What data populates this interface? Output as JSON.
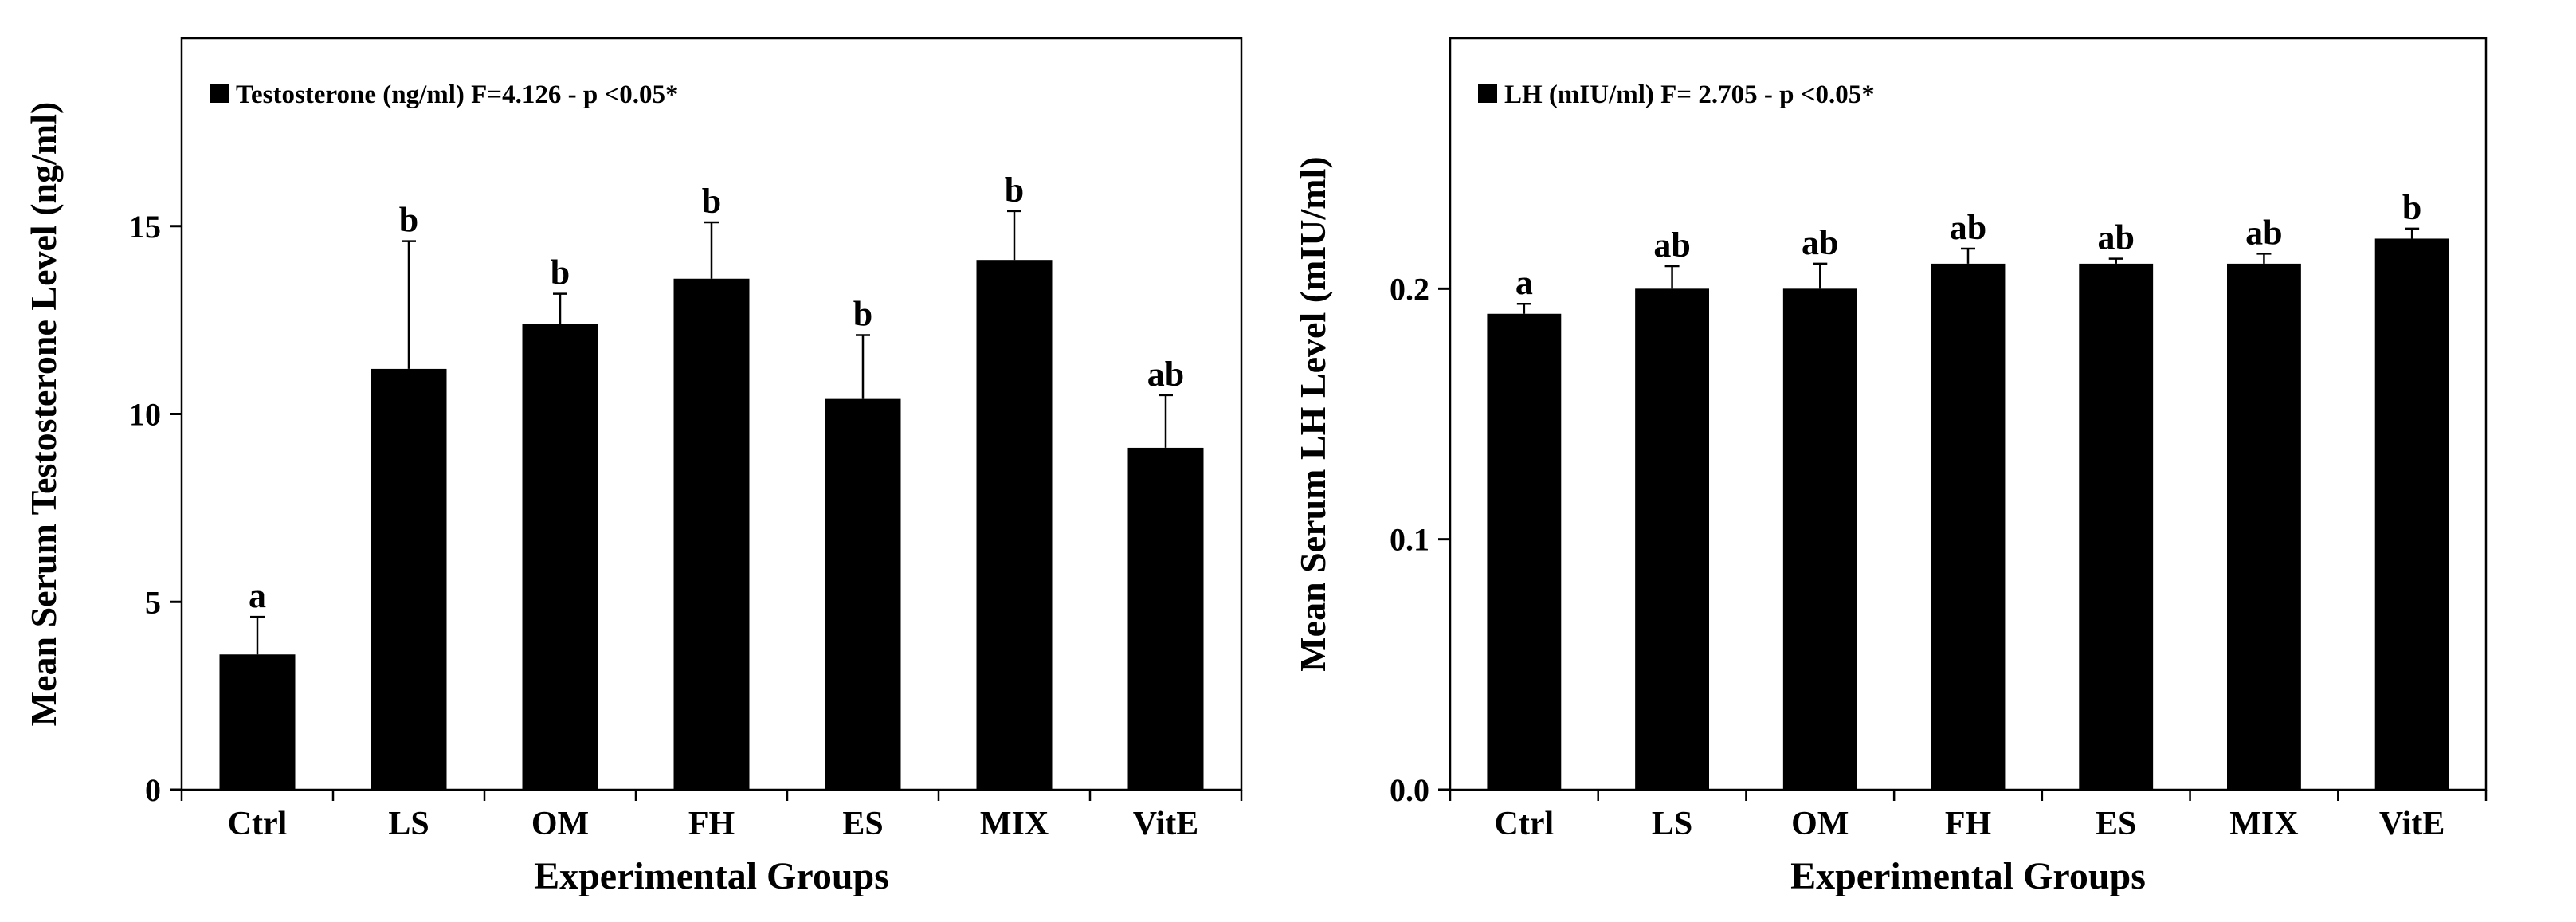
{
  "chart_data": [
    {
      "type": "bar",
      "legend": "Testosterone (ng/ml) F=4.126 - p <0.05*",
      "legend_position": "top-left",
      "xlabel": "Experimental Groups",
      "ylabel": "Mean Serum Testosterone Level (ng/ml)",
      "categories": [
        "Ctrl",
        "LS",
        "OM",
        "FH",
        "ES",
        "MIX",
        "VitE"
      ],
      "values": [
        3.6,
        11.2,
        12.4,
        13.6,
        10.4,
        14.1,
        9.1
      ],
      "error_upper": [
        1.0,
        3.4,
        0.8,
        1.5,
        1.7,
        1.3,
        1.4
      ],
      "significance": [
        "a",
        "b",
        "b",
        "b",
        "b",
        "b",
        "ab"
      ],
      "ylim": [
        0,
        20
      ],
      "yticks": [
        0,
        5,
        10,
        15
      ],
      "ytick_labels": [
        "0",
        "5",
        "10",
        "15"
      ]
    },
    {
      "type": "bar",
      "legend": "LH (mIU/ml) F= 2.705 - p <0.05*",
      "legend_position": "top-left",
      "xlabel": "Experimental Groups",
      "ylabel": "Mean Serum LH Level (mIU/ml)",
      "categories": [
        "Ctrl",
        "LS",
        "OM",
        "FH",
        "ES",
        "MIX",
        "VitE"
      ],
      "values": [
        0.19,
        0.2,
        0.2,
        0.21,
        0.21,
        0.21,
        0.22
      ],
      "error_upper": [
        0.004,
        0.009,
        0.01,
        0.006,
        0.002,
        0.004,
        0.004
      ],
      "significance": [
        "a",
        "ab",
        "ab",
        "ab",
        "ab",
        "ab",
        "b"
      ],
      "ylim": [
        0,
        0.3
      ],
      "yticks": [
        0,
        0.1,
        0.2
      ],
      "ytick_labels": [
        "0.0",
        "0.1",
        "0.2"
      ]
    }
  ]
}
